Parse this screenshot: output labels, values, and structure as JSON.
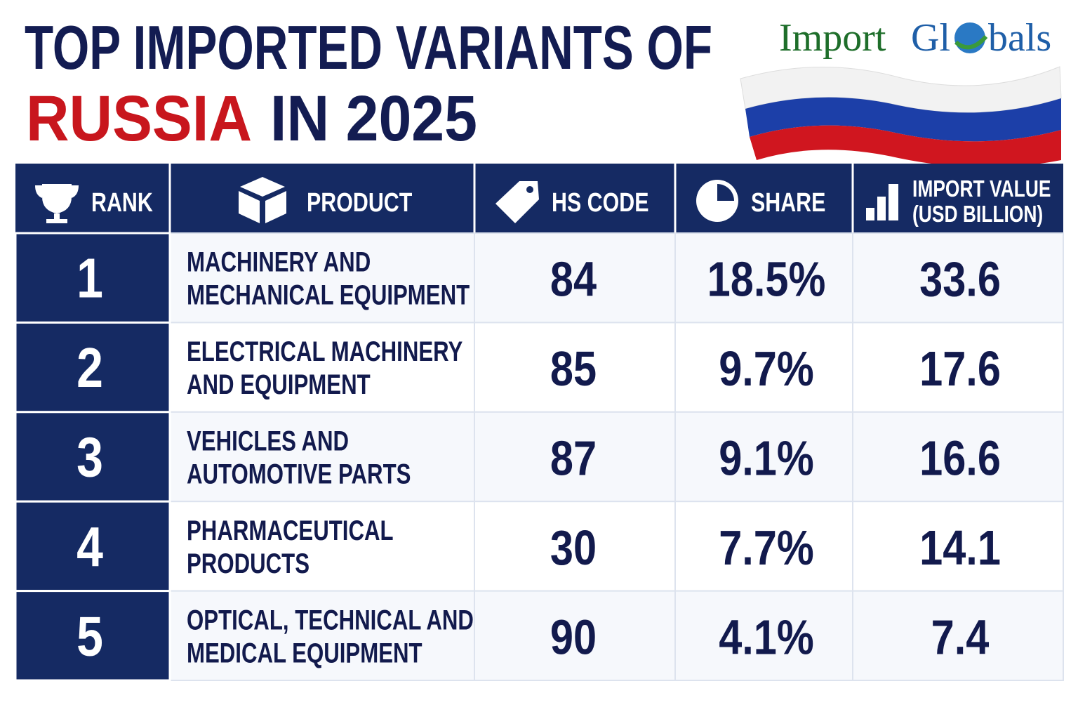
{
  "header": {
    "title_line1": "TOP IMPORTED VARIANTS OF",
    "title_highlight": "RUSSIA",
    "title_rest": "IN 2025",
    "logo_left": "Import",
    "logo_mid": "Gl",
    "logo_right": "bals"
  },
  "table": {
    "columns": [
      "RANK",
      "PRODUCT",
      "HS CODE",
      "SHARE",
      [
        "IMPORT VALUE",
        "(USD BILLION)"
      ]
    ],
    "rows": [
      [
        "1",
        [
          "MACHINERY AND",
          "MECHANICAL EQUIPMENT"
        ],
        "84",
        "18.5%",
        "33.6"
      ],
      [
        "2",
        [
          "ELECTRICAL MACHINERY",
          "AND EQUIPMENT"
        ],
        "85",
        "9.7%",
        "17.6"
      ],
      [
        "3",
        [
          "VEHICLES AND",
          "AUTOMOTIVE PARTS"
        ],
        "87",
        "9.1%",
        "16.6"
      ],
      [
        "4",
        [
          "PHARMACEUTICAL",
          "PRODUCTS"
        ],
        "30",
        "7.7%",
        "14.1"
      ],
      [
        "5",
        [
          "OPTICAL, TECHNICAL AND",
          "MEDICAL EQUIPMENT"
        ],
        "90",
        "4.1%",
        "7.4"
      ]
    ]
  }
}
